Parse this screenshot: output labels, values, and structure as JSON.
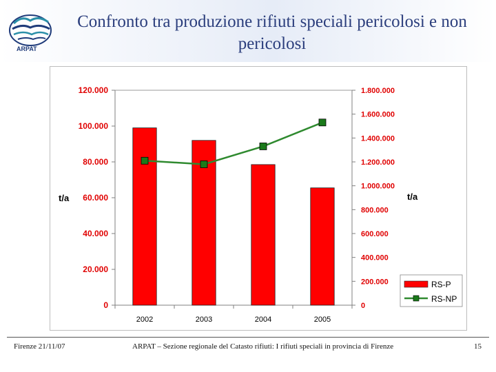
{
  "header": {
    "title": "Confronto tra produzione rifiuti speciali pericolosi e non pericolosi",
    "logo_text": "ARPAT"
  },
  "footer": {
    "date": "Firenze 21/11/07",
    "caption": "ARPAT – Sezione regionale del Catasto rifiuti: I rifiuti speciali in provincia di Firenze",
    "page": "15"
  },
  "chart_data": {
    "type": "bar",
    "categories": [
      "2002",
      "2003",
      "2004",
      "2005"
    ],
    "ylabel": "t/a",
    "y2label": "t/a",
    "ylim": [
      0,
      120000
    ],
    "y2lim": [
      0,
      1800000
    ],
    "yticks": [
      "0",
      "20.000",
      "40.000",
      "60.000",
      "80.000",
      "100.000",
      "120.000"
    ],
    "y2ticks": [
      "0",
      "200.000",
      "400.000",
      "600.000",
      "800.000",
      "1.000.000",
      "1.200.000",
      "1.400.000",
      "1.600.000",
      "1.800.000"
    ],
    "grid": false,
    "legend": "bottom-right",
    "series": [
      {
        "name": "RS-P",
        "type": "bar",
        "axis": "left",
        "color": "#ff0000",
        "values": [
          99000,
          92000,
          78500,
          65500
        ]
      },
      {
        "name": "RS-NP",
        "type": "line",
        "axis": "right",
        "color": "#2f8a2f",
        "marker_color": "#1a7a1a",
        "values": [
          1210000,
          1180000,
          1330000,
          1530000
        ]
      }
    ]
  }
}
